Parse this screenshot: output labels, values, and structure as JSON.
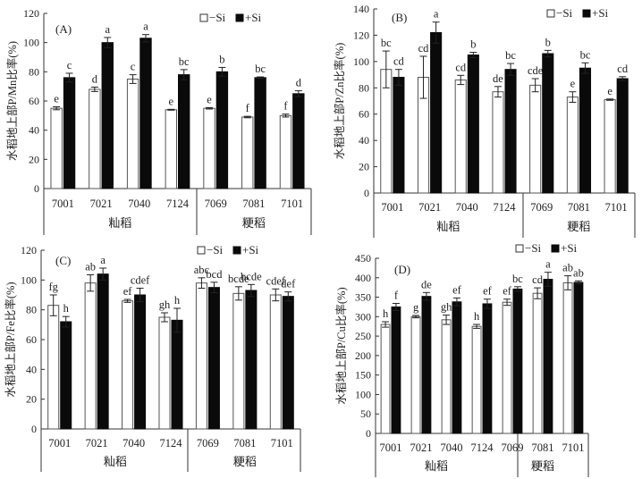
{
  "figure": {
    "series_names": [
      "−Si",
      "+Si"
    ],
    "colors": {
      "neg": "#ffffff",
      "pos": "#0a0a0a",
      "axis": "#333333"
    },
    "groups": [
      {
        "name": "籼稻",
        "categories": [
          "7001",
          "7021",
          "7040",
          "7124"
        ]
      },
      {
        "name": "粳稻",
        "categories": [
          "7069",
          "7081",
          "7101"
        ]
      }
    ]
  },
  "chart_data": [
    {
      "type": "bar",
      "panel": "(A)",
      "title": "",
      "ylabel": "水稻地上部P/Mn比率(%)",
      "xlabel": "",
      "ylim": [
        0,
        120
      ],
      "yticks": [
        0,
        20,
        40,
        60,
        80,
        100,
        120
      ],
      "categories": [
        "7001",
        "7021",
        "7040",
        "7124",
        "7069",
        "7081",
        "7101"
      ],
      "groups": [
        {
          "name": "籼稻",
          "span": [
            0,
            3
          ]
        },
        {
          "name": "粳稻",
          "span": [
            4,
            6
          ]
        }
      ],
      "legend": "top-right",
      "grid": false,
      "series": [
        {
          "name": "−Si",
          "values": [
            55,
            68,
            75,
            54,
            55,
            49,
            50
          ],
          "errors": [
            1,
            1.5,
            3,
            0.3,
            0.5,
            0.5,
            1
          ],
          "letters": [
            "e",
            "d",
            "c",
            "e",
            "e",
            "f",
            "f"
          ]
        },
        {
          "name": "+Si",
          "values": [
            76,
            100,
            103,
            78,
            80,
            76,
            65
          ],
          "errors": [
            3,
            3.5,
            2.5,
            3.5,
            3,
            0.5,
            2
          ],
          "letters": [
            "c",
            "a",
            "a",
            "bc",
            "b",
            "bc",
            "d"
          ]
        }
      ]
    },
    {
      "type": "bar",
      "panel": "(B)",
      "title": "",
      "ylabel": "水稻地上部P/Zn比率(%)",
      "xlabel": "",
      "ylim": [
        0,
        140
      ],
      "yticks": [
        0,
        20,
        40,
        60,
        80,
        100,
        120,
        140
      ],
      "categories": [
        "7001",
        "7021",
        "7040",
        "7124",
        "7069",
        "7081",
        "7101"
      ],
      "groups": [
        {
          "name": "籼稻",
          "span": [
            0,
            3
          ]
        },
        {
          "name": "粳稻",
          "span": [
            4,
            6
          ]
        }
      ],
      "legend": "top-right",
      "grid": false,
      "series": [
        {
          "name": "−Si",
          "values": [
            94,
            88,
            86,
            77,
            82,
            73,
            71
          ],
          "errors": [
            14,
            16,
            3.5,
            4,
            5,
            4,
            0.5
          ],
          "letters": [
            "bc",
            "cd",
            "cd",
            "de",
            "cde",
            "e",
            "e"
          ]
        },
        {
          "name": "+Si",
          "values": [
            88,
            122,
            105,
            94,
            106,
            95,
            87
          ],
          "errors": [
            6,
            8,
            2,
            4.5,
            2.5,
            4,
            1.5
          ],
          "letters": [
            "cd",
            "a",
            "b",
            "bc",
            "b",
            "bc",
            "cd"
          ]
        }
      ]
    },
    {
      "type": "bar",
      "panel": "(C)",
      "title": "",
      "ylabel": "水稻地上部P/Fe比率(%)",
      "xlabel": "",
      "ylim": [
        0,
        120
      ],
      "yticks": [
        0,
        20,
        40,
        60,
        80,
        100,
        120
      ],
      "categories": [
        "7001",
        "7021",
        "7040",
        "7124",
        "7069",
        "7081",
        "7101"
      ],
      "groups": [
        {
          "name": "籼稻",
          "span": [
            0,
            3
          ]
        },
        {
          "name": "粳稻",
          "span": [
            4,
            6
          ]
        }
      ],
      "legend": "top-right",
      "grid": false,
      "series": [
        {
          "name": "−Si",
          "values": [
            83,
            98,
            86,
            75,
            98,
            91,
            90
          ],
          "errors": [
            7,
            5.5,
            1,
            3,
            3.5,
            4.5,
            4
          ],
          "letters": [
            "fg",
            "ab",
            "ef",
            "gh",
            "abc",
            "bcde",
            "cdef"
          ]
        },
        {
          "name": "+Si",
          "values": [
            72,
            104,
            90,
            73,
            95,
            93,
            89
          ],
          "errors": [
            3.5,
            4,
            4.5,
            8,
            3.5,
            4,
            3
          ],
          "letters": [
            "h",
            "a",
            "cdef",
            "h",
            "bcd",
            "bcde",
            "def"
          ]
        }
      ]
    },
    {
      "type": "bar",
      "panel": "(D)",
      "title": "",
      "ylabel": "水稻地上部P/Cu比率(%)",
      "xlabel": "",
      "ylim": [
        0,
        450
      ],
      "yticks": [
        0,
        50,
        100,
        150,
        200,
        250,
        300,
        350,
        400,
        450
      ],
      "categories": [
        "7001",
        "7021",
        "7040",
        "7124",
        "7069",
        "7081",
        "7101"
      ],
      "groups": [
        {
          "name": "籼稻",
          "span": [
            0,
            3
          ]
        },
        {
          "name": "粳稻",
          "span": [
            4,
            6
          ]
        }
      ],
      "legend": "top-right",
      "grid": false,
      "series": [
        {
          "name": "−Si",
          "values": [
            280,
            300,
            292,
            275,
            337,
            360,
            387
          ],
          "errors": [
            7,
            3,
            12,
            5,
            8,
            14,
            18
          ],
          "letters": [
            "h",
            "g",
            "gh",
            "h",
            "ef",
            "cd",
            "ab"
          ]
        },
        {
          "name": "+Si",
          "values": [
            325,
            352,
            338,
            333,
            371,
            396,
            388
          ],
          "errors": [
            9,
            10,
            10,
            12,
            6,
            18,
            4
          ],
          "letters": [
            "f",
            "de",
            "ef",
            "ef",
            "bc",
            "a",
            "ab"
          ]
        }
      ]
    }
  ]
}
